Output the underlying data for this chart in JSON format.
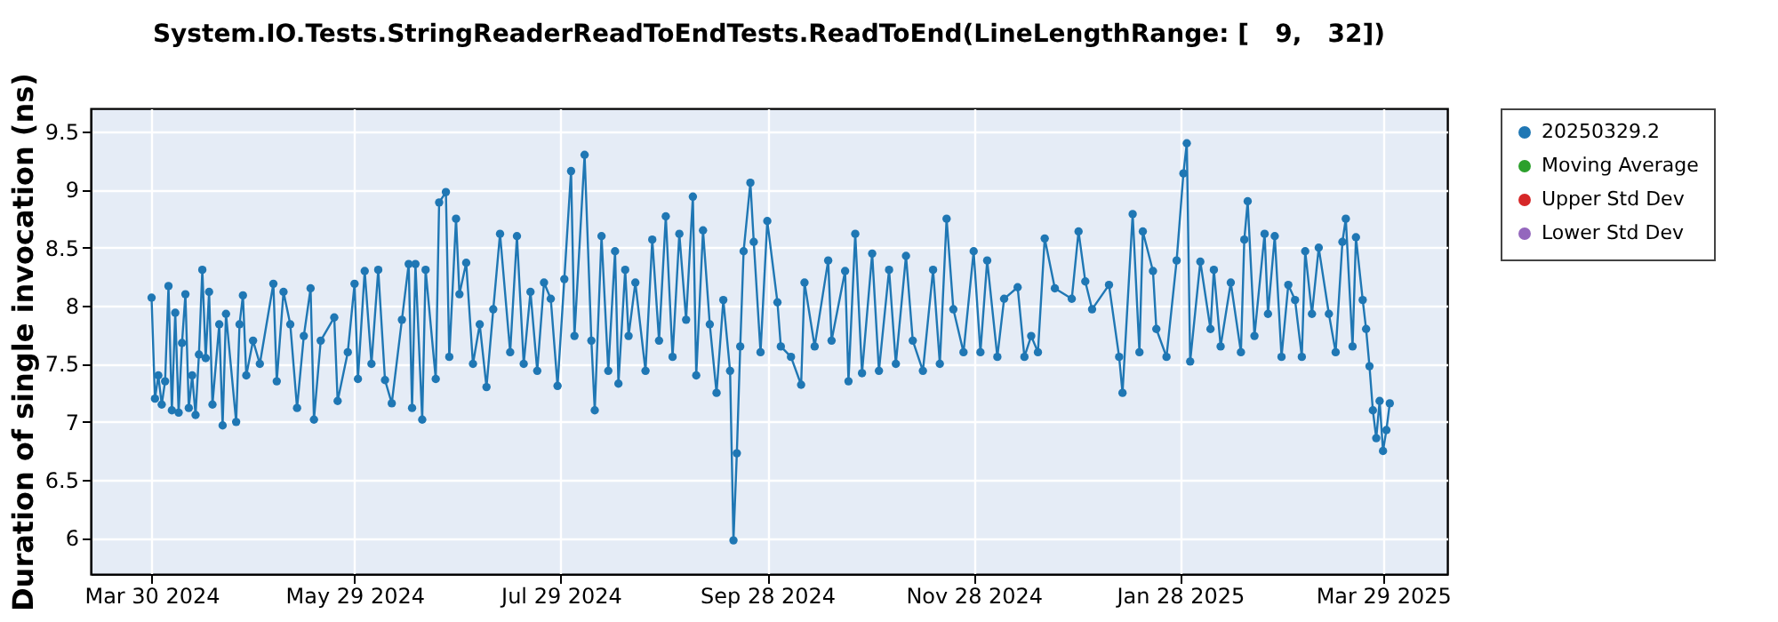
{
  "chart_data": {
    "type": "line",
    "title": "System.IO.Tests.StringReaderReadToEndTests.ReadToEnd(LineLengthRange: [   9,   32])",
    "ylabel": "Duration of single invocation (ns)",
    "x": [
      "2024-03-30",
      "2024-03-31",
      "2024-04-01",
      "2024-04-02",
      "2024-04-03",
      "2024-04-04",
      "2024-04-05",
      "2024-04-06",
      "2024-04-07",
      "2024-04-08",
      "2024-04-09",
      "2024-04-10",
      "2024-04-11",
      "2024-04-12",
      "2024-04-13",
      "2024-04-14",
      "2024-04-15",
      "2024-04-16",
      "2024-04-17",
      "2024-04-19",
      "2024-04-20",
      "2024-04-21",
      "2024-04-24",
      "2024-04-25",
      "2024-04-26",
      "2024-04-27",
      "2024-04-29",
      "2024-05-01",
      "2024-05-05",
      "2024-05-06",
      "2024-05-08",
      "2024-05-10",
      "2024-05-12",
      "2024-05-14",
      "2024-05-16",
      "2024-05-17",
      "2024-05-19",
      "2024-05-23",
      "2024-05-24",
      "2024-05-27",
      "2024-05-29",
      "2024-05-30",
      "2024-06-01",
      "2024-06-03",
      "2024-06-05",
      "2024-06-07",
      "2024-06-09",
      "2024-06-12",
      "2024-06-14",
      "2024-06-15",
      "2024-06-16",
      "2024-06-18",
      "2024-06-19",
      "2024-06-22",
      "2024-06-23",
      "2024-06-25",
      "2024-06-26",
      "2024-06-28",
      "2024-06-29",
      "2024-07-01",
      "2024-07-03",
      "2024-07-05",
      "2024-07-07",
      "2024-07-09",
      "2024-07-11",
      "2024-07-14",
      "2024-07-16",
      "2024-07-18",
      "2024-07-20",
      "2024-07-22",
      "2024-07-24",
      "2024-07-26",
      "2024-07-28",
      "2024-07-30",
      "2024-08-01",
      "2024-08-02",
      "2024-08-05",
      "2024-08-07",
      "2024-08-08",
      "2024-08-10",
      "2024-08-12",
      "2024-08-14",
      "2024-08-15",
      "2024-08-17",
      "2024-08-18",
      "2024-08-20",
      "2024-08-23",
      "2024-08-25",
      "2024-08-27",
      "2024-08-29",
      "2024-08-31",
      "2024-09-02",
      "2024-09-04",
      "2024-09-06",
      "2024-09-07",
      "2024-09-09",
      "2024-09-11",
      "2024-09-13",
      "2024-09-15",
      "2024-09-17",
      "2024-09-18",
      "2024-09-19",
      "2024-09-20",
      "2024-09-21",
      "2024-09-23",
      "2024-09-24",
      "2024-09-26",
      "2024-09-28",
      "2024-10-01",
      "2024-10-02",
      "2024-10-05",
      "2024-10-08",
      "2024-10-09",
      "2024-10-12",
      "2024-10-16",
      "2024-10-17",
      "2024-10-21",
      "2024-10-22",
      "2024-10-24",
      "2024-10-26",
      "2024-10-29",
      "2024-10-31",
      "2024-11-03",
      "2024-11-05",
      "2024-11-08",
      "2024-11-10",
      "2024-11-13",
      "2024-11-16",
      "2024-11-18",
      "2024-11-20",
      "2024-11-22",
      "2024-11-25",
      "2024-11-28",
      "2024-11-30",
      "2024-12-02",
      "2024-12-05",
      "2024-12-07",
      "2024-12-11",
      "2024-12-13",
      "2024-12-15",
      "2024-12-17",
      "2024-12-19",
      "2024-12-22",
      "2024-12-27",
      "2024-12-29",
      "2024-12-31",
      "2025-01-02",
      "2025-01-07",
      "2025-01-10",
      "2025-01-11",
      "2025-01-14",
      "2025-01-16",
      "2025-01-17",
      "2025-01-20",
      "2025-01-21",
      "2025-01-24",
      "2025-01-27",
      "2025-01-29",
      "2025-01-30",
      "2025-01-31",
      "2025-02-03",
      "2025-02-06",
      "2025-02-07",
      "2025-02-09",
      "2025-02-12",
      "2025-02-15",
      "2025-02-16",
      "2025-02-17",
      "2025-02-19",
      "2025-02-22",
      "2025-02-23",
      "2025-02-25",
      "2025-02-27",
      "2025-03-01",
      "2025-03-03",
      "2025-03-05",
      "2025-03-06",
      "2025-03-08",
      "2025-03-10",
      "2025-03-13",
      "2025-03-15",
      "2025-03-17",
      "2025-03-18",
      "2025-03-20",
      "2025-03-21",
      "2025-03-23",
      "2025-03-24",
      "2025-03-25",
      "2025-03-26",
      "2025-03-27",
      "2025-03-28",
      "2025-03-29",
      "2025-03-30",
      "2025-03-31"
    ],
    "series": [
      {
        "name": "20250329.2",
        "color": "#1f77b4",
        "values": [
          8.07,
          7.2,
          7.4,
          7.15,
          7.35,
          8.17,
          7.1,
          7.94,
          7.08,
          7.68,
          8.1,
          7.12,
          7.4,
          7.06,
          7.58,
          8.31,
          7.55,
          8.12,
          7.15,
          7.84,
          6.97,
          7.93,
          7.0,
          7.84,
          8.09,
          7.4,
          7.7,
          7.5,
          8.19,
          7.35,
          8.12,
          7.84,
          7.12,
          7.74,
          8.15,
          7.02,
          7.7,
          7.9,
          7.18,
          7.6,
          8.19,
          7.37,
          8.3,
          7.5,
          8.31,
          7.36,
          7.16,
          7.88,
          8.36,
          7.12,
          8.36,
          7.02,
          8.31,
          7.37,
          8.89,
          8.98,
          7.56,
          8.75,
          8.1,
          8.37,
          7.5,
          7.84,
          7.3,
          7.97,
          8.62,
          7.6,
          8.6,
          7.5,
          8.12,
          7.44,
          8.2,
          8.06,
          7.31,
          8.23,
          9.16,
          7.74,
          9.3,
          7.7,
          7.1,
          8.6,
          7.44,
          8.47,
          7.33,
          8.31,
          7.74,
          8.2,
          7.44,
          8.57,
          7.7,
          8.77,
          7.56,
          8.62,
          7.88,
          8.94,
          7.4,
          8.65,
          7.84,
          7.25,
          8.05,
          7.44,
          5.98,
          6.73,
          7.65,
          8.47,
          9.06,
          8.55,
          7.6,
          8.73,
          8.03,
          7.65,
          7.56,
          7.32,
          8.2,
          7.65,
          8.39,
          7.7,
          8.3,
          7.35,
          8.62,
          7.42,
          8.45,
          7.44,
          8.31,
          7.5,
          8.43,
          7.7,
          7.44,
          8.31,
          7.5,
          8.75,
          7.97,
          7.6,
          8.47,
          7.6,
          8.39,
          7.56,
          8.06,
          8.16,
          7.56,
          7.74,
          7.6,
          8.58,
          8.15,
          8.06,
          8.64,
          8.21,
          7.97,
          8.18,
          7.56,
          7.25,
          8.79,
          7.6,
          8.64,
          8.3,
          7.8,
          7.56,
          8.39,
          9.14,
          9.4,
          7.52,
          8.38,
          7.8,
          8.31,
          7.65,
          8.2,
          7.6,
          8.57,
          8.9,
          7.74,
          8.62,
          7.93,
          8.6,
          7.56,
          8.18,
          8.05,
          7.56,
          8.47,
          7.93,
          8.5,
          7.93,
          7.6,
          8.55,
          8.75,
          7.65,
          8.59,
          8.05,
          7.8,
          7.48,
          7.1,
          6.86,
          7.18,
          6.75,
          6.93,
          7.16
        ]
      },
      {
        "name": "Moving Average",
        "color": "#2ca02c",
        "values": [
          null,
          null,
          null,
          null,
          null,
          null,
          null,
          null,
          null,
          null,
          null,
          null,
          null,
          null,
          null,
          null,
          null,
          null,
          null,
          null,
          null,
          null,
          null,
          null,
          null,
          null,
          null,
          null,
          null,
          null,
          null,
          null,
          null,
          null,
          null,
          null,
          null,
          null,
          null,
          null,
          null,
          null,
          null,
          null,
          null,
          null,
          null,
          null,
          null,
          null,
          null,
          null,
          null,
          null,
          null,
          null,
          null,
          null,
          null,
          null,
          null,
          null,
          null,
          null,
          null,
          null,
          null,
          null,
          null,
          null,
          null,
          null,
          null,
          null,
          null,
          null,
          null,
          null,
          null,
          null,
          null,
          null,
          null,
          null,
          null,
          null,
          null,
          null,
          null,
          null,
          null,
          null,
          null,
          null,
          null,
          null,
          null,
          null,
          null,
          null,
          null,
          null,
          null,
          null,
          null,
          null,
          null,
          null,
          null,
          null,
          null,
          null,
          null,
          null,
          null,
          null,
          null,
          null,
          null,
          null,
          null,
          null,
          null,
          null,
          null,
          null,
          null,
          null,
          null,
          null,
          null,
          null,
          null,
          null,
          null,
          null,
          null,
          null,
          null,
          null,
          null,
          null,
          null,
          null,
          null,
          null,
          null,
          null,
          null,
          null,
          null,
          null,
          null,
          null,
          null,
          null,
          null,
          null,
          null,
          null,
          null,
          null,
          null,
          null,
          null,
          null,
          null,
          null,
          null,
          null,
          null,
          null,
          null,
          null,
          null,
          null,
          null,
          null,
          null,
          null,
          null,
          null,
          null,
          null,
          null,
          null,
          null,
          null,
          null,
          null,
          null,
          null,
          null,
          null
        ]
      },
      {
        "name": "Upper Std Dev",
        "color": "#d62728",
        "values": [
          null,
          null,
          null,
          null,
          null,
          null,
          null,
          null,
          null,
          null,
          null,
          null,
          null,
          null,
          null,
          null,
          null,
          null,
          null,
          null,
          null,
          null,
          null,
          null,
          null,
          null,
          null,
          null,
          null,
          null,
          null,
          null,
          null,
          null,
          null,
          null,
          null,
          null,
          null,
          null,
          null,
          null,
          null,
          null,
          null,
          null,
          null,
          null,
          null,
          null,
          null,
          null,
          null,
          null,
          null,
          null,
          null,
          null,
          null,
          null,
          null,
          null,
          null,
          null,
          null,
          null,
          null,
          null,
          null,
          null,
          null,
          null,
          null,
          null,
          null,
          null,
          null,
          null,
          null,
          null,
          null,
          null,
          null,
          null,
          null,
          null,
          null,
          null,
          null,
          null,
          null,
          null,
          null,
          null,
          null,
          null,
          null,
          null,
          null,
          null,
          null,
          null,
          null,
          null,
          null,
          null,
          null,
          null,
          null,
          null,
          null,
          null,
          null,
          null,
          null,
          null,
          null,
          null,
          null,
          null,
          null,
          null,
          null,
          null,
          null,
          null,
          null,
          null,
          null,
          null,
          null,
          null,
          null,
          null,
          null,
          null,
          null,
          null,
          null,
          null,
          null,
          null,
          null,
          null,
          null,
          null,
          null,
          null,
          null,
          null,
          null,
          null,
          null,
          null,
          null,
          null,
          null,
          null,
          null,
          null,
          null,
          null,
          null,
          null,
          null,
          null,
          null,
          null,
          null,
          null,
          null,
          null,
          null,
          null,
          null,
          null,
          null,
          null,
          null,
          null,
          null,
          null,
          null,
          null,
          null,
          null,
          null,
          null,
          null,
          null,
          null,
          null,
          null,
          null
        ]
      },
      {
        "name": "Lower Std Dev",
        "color": "#9467bd",
        "values": [
          null,
          null,
          null,
          null,
          null,
          null,
          null,
          null,
          null,
          null,
          null,
          null,
          null,
          null,
          null,
          null,
          null,
          null,
          null,
          null,
          null,
          null,
          null,
          null,
          null,
          null,
          null,
          null,
          null,
          null,
          null,
          null,
          null,
          null,
          null,
          null,
          null,
          null,
          null,
          null,
          null,
          null,
          null,
          null,
          null,
          null,
          null,
          null,
          null,
          null,
          null,
          null,
          null,
          null,
          null,
          null,
          null,
          null,
          null,
          null,
          null,
          null,
          null,
          null,
          null,
          null,
          null,
          null,
          null,
          null,
          null,
          null,
          null,
          null,
          null,
          null,
          null,
          null,
          null,
          null,
          null,
          null,
          null,
          null,
          null,
          null,
          null,
          null,
          null,
          null,
          null,
          null,
          null,
          null,
          null,
          null,
          null,
          null,
          null,
          null,
          null,
          null,
          null,
          null,
          null,
          null,
          null,
          null,
          null,
          null,
          null,
          null,
          null,
          null,
          null,
          null,
          null,
          null,
          null,
          null,
          null,
          null,
          null,
          null,
          null,
          null,
          null,
          null,
          null,
          null,
          null,
          null,
          null,
          null,
          null,
          null,
          null,
          null,
          null,
          null,
          null,
          null,
          null,
          null,
          null,
          null,
          null,
          null,
          null,
          null,
          null,
          null,
          null,
          null,
          null,
          null,
          null,
          null,
          null,
          null,
          null,
          null,
          null,
          null,
          null,
          null,
          null,
          null,
          null,
          null,
          null,
          null,
          null,
          null,
          null,
          null,
          null,
          null,
          null,
          null,
          null,
          null,
          null,
          null,
          null,
          null,
          null,
          null,
          null,
          null,
          null,
          null,
          null,
          null
        ]
      }
    ],
    "xlim": [
      "2024-03-12",
      "2025-04-17"
    ],
    "xticks": [
      {
        "value": "2024-03-30",
        "label": "Mar 30 2024"
      },
      {
        "value": "2024-05-29",
        "label": "May 29 2024"
      },
      {
        "value": "2024-07-29",
        "label": "Jul 29 2024"
      },
      {
        "value": "2024-09-28",
        "label": "Sep 28 2024"
      },
      {
        "value": "2024-11-28",
        "label": "Nov 28 2024"
      },
      {
        "value": "2025-01-28",
        "label": "Jan 28 2025"
      },
      {
        "value": "2025-03-29",
        "label": "Mar 29 2025"
      }
    ],
    "ylim": [
      5.69,
      9.7
    ],
    "yticks": [
      6,
      6.5,
      7,
      7.5,
      8,
      8.5,
      9,
      9.5
    ],
    "grid": true,
    "legend": "right",
    "marker": "circle",
    "line_style": "solid"
  }
}
